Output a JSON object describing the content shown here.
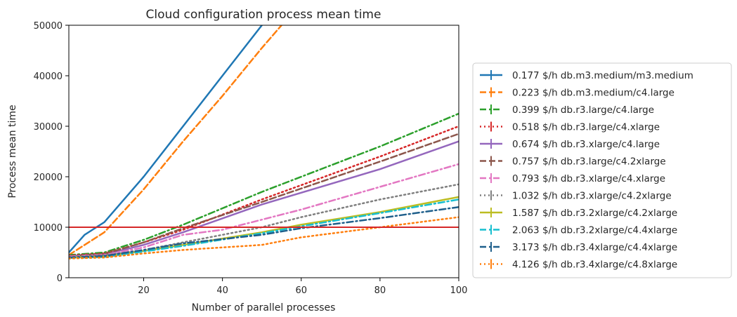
{
  "chart_data": {
    "type": "line",
    "title": "Cloud configuration process mean time",
    "xlabel": "Number of parallel processes",
    "ylabel": "Process mean time",
    "xlim": [
      1,
      100
    ],
    "ylim": [
      0,
      50000
    ],
    "xticks": [
      20,
      40,
      60,
      80,
      100
    ],
    "yticks": [
      0,
      10000,
      20000,
      30000,
      40000,
      50000
    ],
    "grid": false,
    "legend_placement": "outside-right",
    "reference_line": {
      "y": 10000,
      "color": "#d62728"
    },
    "series": [
      {
        "name": "0.177 $/h db.m3.medium/m3.medium",
        "color": "#1f77b4",
        "dash": "solid",
        "x": [
          1,
          5,
          10,
          20,
          30,
          40,
          50
        ],
        "y": [
          5000,
          8500,
          11000,
          20000,
          30000,
          40000,
          50000
        ]
      },
      {
        "name": "0.223 $/h db.m3.medium/c4.large",
        "color": "#ff7f0e",
        "dash": "dashed",
        "x": [
          1,
          10,
          20,
          30,
          40,
          50,
          55
        ],
        "y": [
          4500,
          9000,
          17500,
          27000,
          36000,
          45500,
          50000
        ]
      },
      {
        "name": "0.399 $/h db.r3.large/c4.large",
        "color": "#2ca02c",
        "dash": "dashdot",
        "x": [
          1,
          10,
          20,
          30,
          50,
          80,
          100
        ],
        "y": [
          4500,
          5000,
          7500,
          10500,
          17000,
          26000,
          32500
        ]
      },
      {
        "name": "0.518 $/h db.r3.large/c4.xlarge",
        "color": "#d62728",
        "dash": "dotted",
        "x": [
          1,
          10,
          20,
          30,
          50,
          80,
          100
        ],
        "y": [
          4400,
          4800,
          7000,
          9500,
          15500,
          24000,
          30000
        ]
      },
      {
        "name": "0.674 $/h db.r3.xlarge/c4.large",
        "color": "#9467bd",
        "dash": "solid",
        "x": [
          1,
          10,
          20,
          30,
          50,
          80,
          100
        ],
        "y": [
          4300,
          4600,
          6500,
          9000,
          14500,
          21500,
          27000
        ]
      },
      {
        "name": "0.757 $/h db.r3.large/c4.2xlarge",
        "color": "#8c564b",
        "dash": "dashed",
        "x": [
          1,
          10,
          20,
          30,
          50,
          80,
          100
        ],
        "y": [
          4300,
          4700,
          7000,
          9800,
          15000,
          23000,
          28500
        ]
      },
      {
        "name": "0.793 $/h db.r3.xlarge/c4.xlarge",
        "color": "#e377c2",
        "dash": "dashdot",
        "x": [
          1,
          10,
          20,
          30,
          40,
          60,
          80,
          100
        ],
        "y": [
          4200,
          4500,
          6000,
          8500,
          9500,
          13500,
          18000,
          22500
        ]
      },
      {
        "name": "1.032 $/h db.r3.xlarge/c4.2xlarge",
        "color": "#7f7f7f",
        "dash": "dotted",
        "x": [
          1,
          10,
          20,
          30,
          50,
          60,
          80,
          100
        ],
        "y": [
          4100,
          4400,
          5500,
          7000,
          10000,
          12000,
          15500,
          18500
        ]
      },
      {
        "name": "1.587 $/h db.r3.2xlarge/c4.2xlarge",
        "color": "#bcbd22",
        "dash": "solid",
        "x": [
          1,
          10,
          20,
          30,
          50,
          60,
          80,
          100
        ],
        "y": [
          4000,
          4200,
          5300,
          6500,
          9000,
          10500,
          13000,
          16000
        ]
      },
      {
        "name": "2.063 $/h db.r3.2xlarge/c4.4xlarge",
        "color": "#17becf",
        "dash": "dashdot",
        "x": [
          1,
          10,
          20,
          30,
          50,
          60,
          80,
          100
        ],
        "y": [
          3900,
          4100,
          5200,
          6300,
          8800,
          10200,
          12800,
          15500
        ]
      },
      {
        "name": "3.173 $/h db.r3.4xlarge/c4.4xlarge",
        "color": "#1f5f8b",
        "dash": "dashdot",
        "x": [
          1,
          10,
          20,
          30,
          50,
          60,
          80,
          100
        ],
        "y": [
          4000,
          4300,
          5500,
          6800,
          8500,
          9800,
          11800,
          14000
        ]
      },
      {
        "name": "4.126 $/h db.r3.4xlarge/c4.8xlarge",
        "color": "#ff7f0e",
        "dash": "dotted",
        "x": [
          1,
          10,
          20,
          30,
          50,
          60,
          80,
          100
        ],
        "y": [
          3800,
          4000,
          4800,
          5500,
          6500,
          8000,
          10000,
          12000
        ]
      }
    ]
  }
}
